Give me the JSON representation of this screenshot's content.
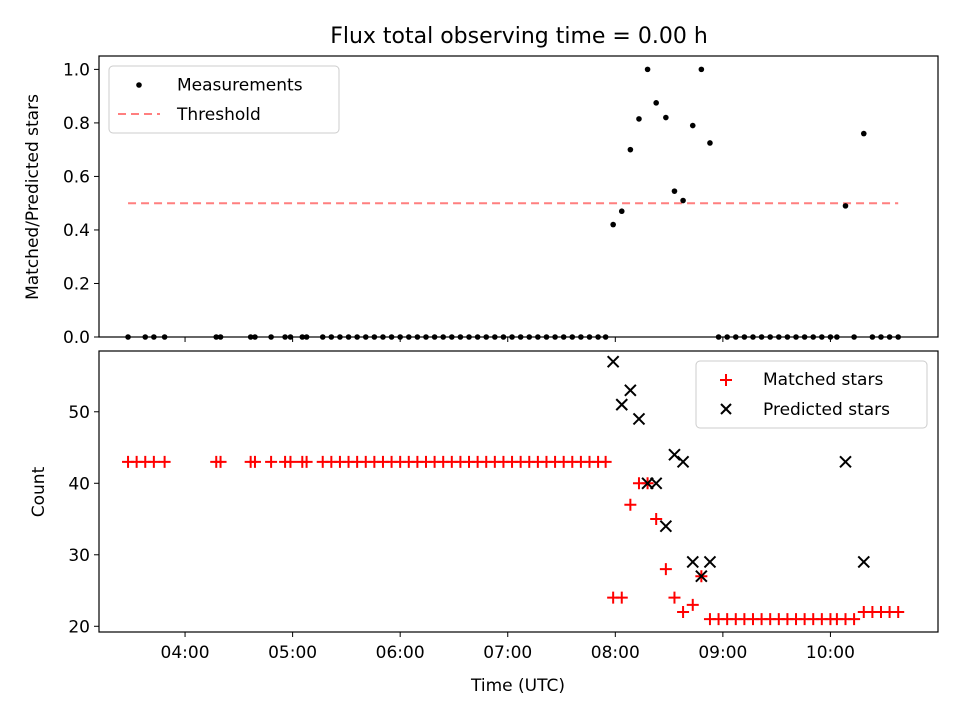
{
  "figure_title": "Flux total observing time = 0.00 h",
  "colors": {
    "measurement": "#000000",
    "threshold": "#ff7f7f",
    "matched": "#ff0000",
    "predicted": "#000000"
  },
  "chart_data": [
    {
      "type": "scatter",
      "ylabel": "Matched/Predicted stars",
      "xlim": [
        3.2,
        11.0
      ],
      "ylim": [
        0.0,
        1.05
      ],
      "yticks": [
        0.0,
        0.2,
        0.4,
        0.6,
        0.8,
        1.0
      ],
      "ytick_labels": [
        "0.0",
        "0.2",
        "0.4",
        "0.6",
        "0.8",
        "1.0"
      ],
      "legend_position": "upper-left",
      "grid": false,
      "series": [
        {
          "name": "Measurements",
          "marker": "dot",
          "x": [
            3.47,
            3.63,
            3.71,
            3.81,
            4.29,
            4.33,
            4.61,
            4.65,
            4.8,
            4.93,
            4.98,
            5.09,
            5.13,
            5.28,
            5.36,
            5.44,
            5.52,
            5.6,
            5.68,
            5.76,
            5.84,
            5.92,
            6.0,
            6.08,
            6.16,
            6.24,
            6.32,
            6.4,
            6.48,
            6.56,
            6.64,
            6.72,
            6.8,
            6.88,
            6.96,
            7.04,
            7.12,
            7.2,
            7.28,
            7.36,
            7.44,
            7.52,
            7.6,
            7.68,
            7.76,
            7.84,
            7.91,
            7.98,
            8.06,
            8.14,
            8.22,
            8.3,
            8.38,
            8.47,
            8.55,
            8.63,
            8.72,
            8.8,
            8.88,
            8.96,
            9.04,
            9.12,
            9.2,
            9.28,
            9.36,
            9.44,
            9.52,
            9.6,
            9.68,
            9.76,
            9.84,
            9.92,
            10.0,
            10.06,
            10.14,
            10.22,
            10.31,
            10.39,
            10.47,
            10.55,
            10.63
          ],
          "y": [
            0,
            0,
            0,
            0,
            0,
            0,
            0,
            0,
            0,
            0,
            0,
            0,
            0,
            0,
            0,
            0,
            0,
            0,
            0,
            0,
            0,
            0,
            0,
            0,
            0,
            0,
            0,
            0,
            0,
            0,
            0,
            0,
            0,
            0,
            0,
            0,
            0,
            0,
            0,
            0,
            0,
            0,
            0,
            0,
            0,
            0,
            0,
            0.42,
            0.47,
            0.7,
            0.815,
            1.0,
            0.875,
            0.82,
            0.545,
            0.51,
            0.79,
            1.0,
            0.725,
            0,
            0,
            0,
            0,
            0,
            0,
            0,
            0,
            0,
            0,
            0,
            0,
            0,
            0,
            0,
            0.49,
            0,
            0.76,
            0,
            0,
            0,
            0
          ]
        },
        {
          "name": "Threshold",
          "marker": "dashed-line",
          "x": [
            3.47,
            10.63
          ],
          "y": [
            0.5,
            0.5
          ]
        }
      ]
    },
    {
      "type": "scatter",
      "xlabel": "Time (UTC)",
      "ylabel": "Count",
      "xlim": [
        3.2,
        11.0
      ],
      "ylim": [
        19.2,
        58.5
      ],
      "xticks": [
        4,
        5,
        6,
        7,
        8,
        9,
        10
      ],
      "xtick_labels": [
        "04:00",
        "05:00",
        "06:00",
        "07:00",
        "08:00",
        "09:00",
        "10:00"
      ],
      "yticks": [
        20,
        30,
        40,
        50
      ],
      "ytick_labels": [
        "20",
        "30",
        "40",
        "50"
      ],
      "legend_position": "upper-right",
      "grid": false,
      "series": [
        {
          "name": "Matched stars",
          "marker": "plus",
          "x": [
            3.47,
            3.55,
            3.63,
            3.71,
            3.81,
            4.29,
            4.33,
            4.61,
            4.65,
            4.8,
            4.93,
            4.98,
            5.09,
            5.13,
            5.28,
            5.36,
            5.44,
            5.52,
            5.6,
            5.68,
            5.76,
            5.84,
            5.92,
            6.0,
            6.08,
            6.16,
            6.24,
            6.32,
            6.4,
            6.48,
            6.56,
            6.64,
            6.72,
            6.8,
            6.88,
            6.96,
            7.04,
            7.12,
            7.2,
            7.28,
            7.36,
            7.44,
            7.52,
            7.6,
            7.68,
            7.76,
            7.84,
            7.91,
            7.98,
            8.06,
            8.14,
            8.22,
            8.3,
            8.38,
            8.47,
            8.55,
            8.63,
            8.72,
            8.8,
            8.88,
            8.96,
            9.04,
            9.12,
            9.2,
            9.28,
            9.36,
            9.44,
            9.52,
            9.6,
            9.68,
            9.76,
            9.84,
            9.92,
            10.0,
            10.06,
            10.14,
            10.22,
            10.31,
            10.39,
            10.47,
            10.55,
            10.63
          ],
          "y": [
            43,
            43,
            43,
            43,
            43,
            43,
            43,
            43,
            43,
            43,
            43,
            43,
            43,
            43,
            43,
            43,
            43,
            43,
            43,
            43,
            43,
            43,
            43,
            43,
            43,
            43,
            43,
            43,
            43,
            43,
            43,
            43,
            43,
            43,
            43,
            43,
            43,
            43,
            43,
            43,
            43,
            43,
            43,
            43,
            43,
            43,
            43,
            43,
            24,
            24,
            37,
            40,
            40,
            35,
            28,
            24,
            22,
            23,
            27,
            21,
            21,
            21,
            21,
            21,
            21,
            21,
            21,
            21,
            21,
            21,
            21,
            21,
            21,
            21,
            21,
            21,
            21,
            22,
            22,
            22,
            22,
            22
          ]
        },
        {
          "name": "Predicted stars",
          "marker": "x",
          "x": [
            7.98,
            8.06,
            8.14,
            8.22,
            8.3,
            8.38,
            8.47,
            8.55,
            8.63,
            8.72,
            8.8,
            8.88,
            10.14,
            10.31
          ],
          "y": [
            57,
            51,
            53,
            49,
            40,
            40,
            34,
            44,
            43,
            29,
            27,
            29,
            43,
            29
          ]
        }
      ]
    }
  ]
}
